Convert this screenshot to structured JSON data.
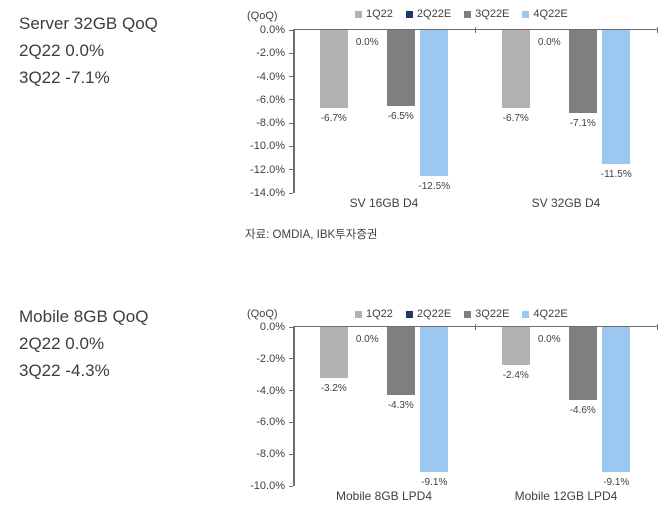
{
  "page": {
    "background": "#ffffff",
    "text_color": "#404040"
  },
  "sections": [
    {
      "title": "Server 32GB QoQ",
      "lines": [
        "2Q22 0.0%",
        "3Q22 -7.1%"
      ],
      "source": "자료: OMDIA, IBK투자증권"
    },
    {
      "title": "Mobile 8GB QoQ",
      "lines": [
        "2Q22 0.0%",
        "3Q22 -4.3%"
      ]
    }
  ],
  "chart_data": [
    {
      "type": "bar",
      "unit_label": "(QoQ)",
      "categories": [
        "SV 16GB D4",
        "SV 32GB D4"
      ],
      "series": [
        {
          "name": "1Q22",
          "color": "#b2b2b2",
          "values": [
            -6.7,
            -6.7
          ]
        },
        {
          "name": "2Q22E",
          "color": "#1f3864",
          "values": [
            0.0,
            0.0
          ]
        },
        {
          "name": "3Q22E",
          "color": "#7f7f7f",
          "values": [
            -6.5,
            -7.1
          ]
        },
        {
          "name": "4Q22E",
          "color": "#9cc7f0",
          "values": [
            -12.5,
            -11.5
          ]
        }
      ],
      "data_labels": [
        [
          "-6.7%",
          "0.0%",
          "-6.5%",
          "-12.5%"
        ],
        [
          "-6.7%",
          "0.0%",
          "-7.1%",
          "-11.5%"
        ]
      ],
      "ylim": [
        -14,
        0
      ],
      "ytick_labels": [
        "0.0%",
        "-2.0%",
        "-4.0%",
        "-6.0%",
        "-8.0%",
        "-10.0%",
        "-12.0%",
        "-14.0%"
      ],
      "legend_position": "top",
      "grid": false
    },
    {
      "type": "bar",
      "unit_label": "(QoQ)",
      "categories": [
        "Mobile 8GB LPD4",
        "Mobile 12GB LPD4"
      ],
      "series": [
        {
          "name": "1Q22",
          "color": "#b2b2b2",
          "values": [
            -3.2,
            -2.4
          ]
        },
        {
          "name": "2Q22E",
          "color": "#1f3864",
          "values": [
            0.0,
            0.0
          ]
        },
        {
          "name": "3Q22E",
          "color": "#7f7f7f",
          "values": [
            -4.3,
            -4.6
          ]
        },
        {
          "name": "4Q22E",
          "color": "#9cc7f0",
          "values": [
            -9.1,
            -9.1
          ]
        }
      ],
      "data_labels": [
        [
          "-3.2%",
          "0.0%",
          "-4.3%",
          "-9.1%"
        ],
        [
          "-2.4%",
          "0.0%",
          "-4.6%",
          "-9.1%"
        ]
      ],
      "ylim": [
        -10,
        0
      ],
      "ytick_labels": [
        "0.0%",
        "-2.0%",
        "-4.0%",
        "-6.0%",
        "-8.0%",
        "-10.0%"
      ],
      "legend_position": "top",
      "grid": false
    }
  ]
}
